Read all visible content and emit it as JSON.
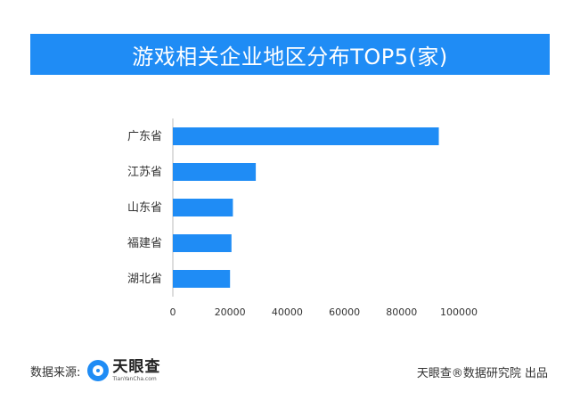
{
  "title": "游戏相关企业地区分布TOP5(家)",
  "footer": {
    "source_label": "数据来源:",
    "logo_name": "天眼查",
    "logo_url": "TianYanCha.com",
    "credit": "天眼查®数据研究院 出品"
  },
  "colors": {
    "accent": "#1f8cf5",
    "bar": "#1f8cf5",
    "axis": "#bbbbbb",
    "text": "#333333"
  },
  "chart_data": {
    "type": "bar",
    "orientation": "horizontal",
    "title": "游戏相关企业地区分布TOP5(家)",
    "categories": [
      "广东省",
      "江苏省",
      "山东省",
      "福建省",
      "湖北省"
    ],
    "values": [
      93000,
      29000,
      21000,
      20500,
      20000
    ],
    "xlim": [
      0,
      100000
    ],
    "xticks": [
      "0",
      "20000",
      "40000",
      "60000",
      "80000",
      "100000"
    ],
    "xtick_values": [
      0,
      20000,
      40000,
      60000,
      80000,
      100000
    ],
    "grid": false,
    "legend": "none"
  }
}
